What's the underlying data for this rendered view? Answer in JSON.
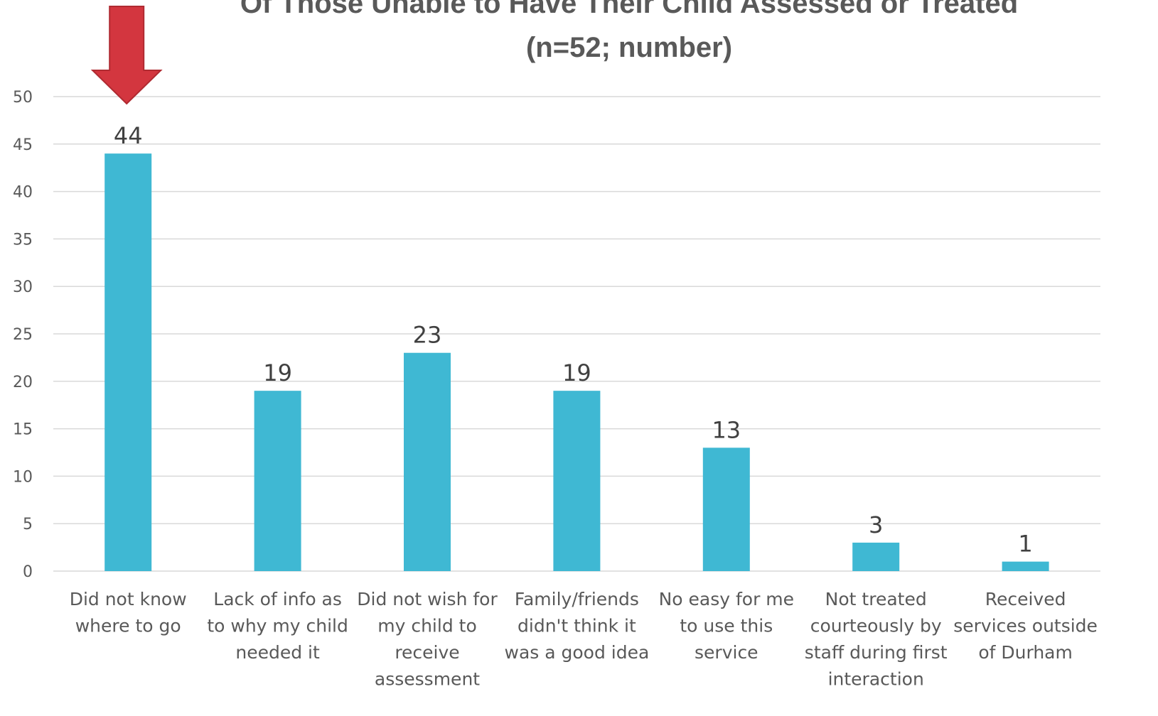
{
  "chart_data": {
    "type": "bar",
    "title_lines": [
      "Of Those Unable to Have Their Child Assessed or Treated",
      "(n=52; number)"
    ],
    "categories": [
      [
        "Did not know",
        "where to go"
      ],
      [
        "Lack of info as",
        "to why my child",
        "needed it"
      ],
      [
        "Did not wish for",
        "my child to",
        "receive",
        "assessment"
      ],
      [
        "Family/friends",
        "didn't think it",
        "was a good idea"
      ],
      [
        "No easy for me",
        "to use this",
        "service"
      ],
      [
        "Not treated",
        "courteously by",
        "staff during first",
        "interaction"
      ],
      [
        "Received",
        "services outside",
        "of Durham"
      ]
    ],
    "values": [
      44,
      19,
      23,
      19,
      13,
      3,
      1
    ],
    "ylim": [
      0,
      50
    ],
    "yticks": [
      0,
      5,
      10,
      15,
      20,
      25,
      30,
      35,
      40,
      45,
      50
    ],
    "grid": true,
    "bar_color": "#3fb8d3",
    "highlight": {
      "category_index": 0,
      "shape": "down-arrow",
      "color": "#d3363f"
    }
  }
}
